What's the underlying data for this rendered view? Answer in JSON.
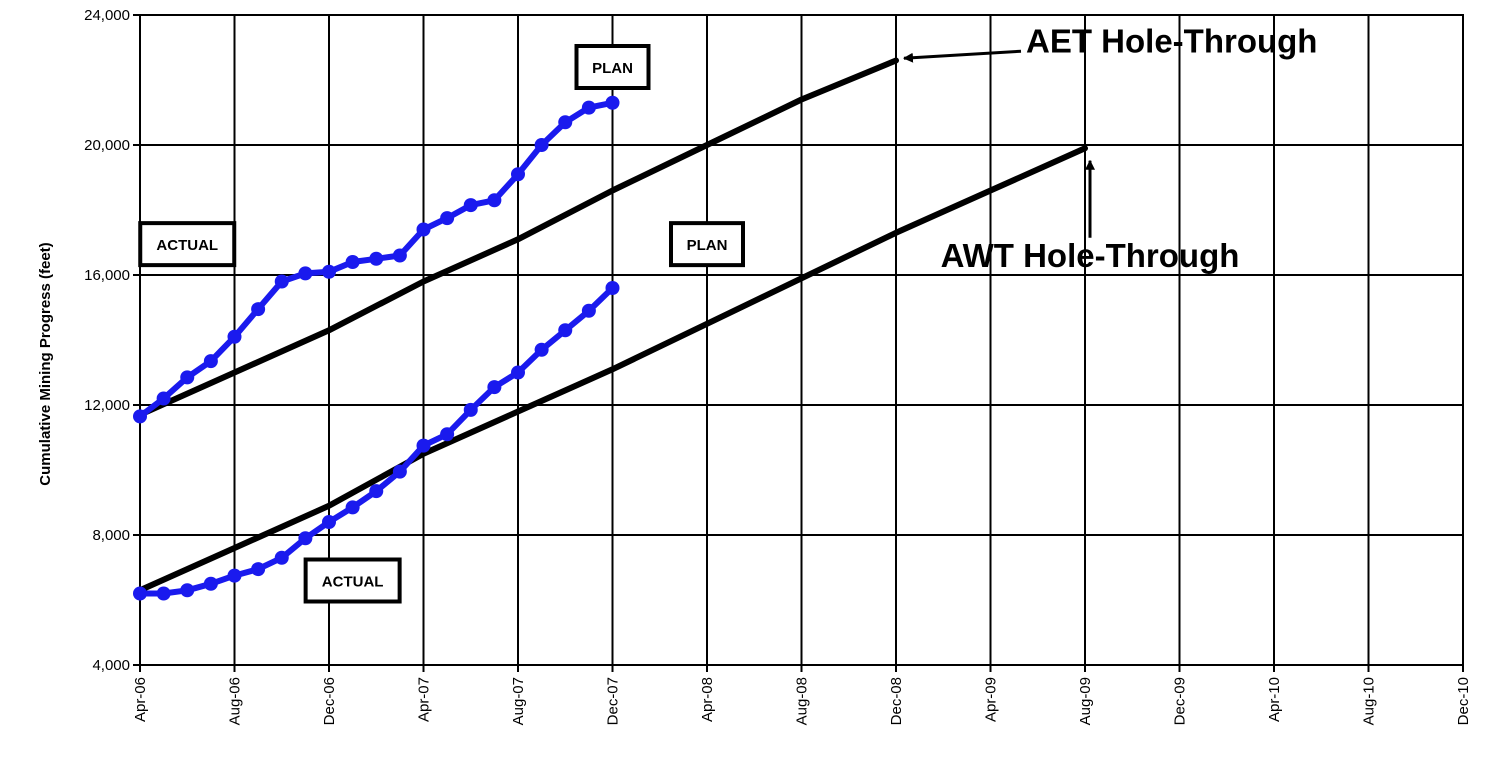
{
  "chart_data": {
    "type": "line",
    "ylabel": "Cumulative Mining Progress  (feet)",
    "ylim": [
      4000,
      24000
    ],
    "yticks": [
      4000,
      8000,
      12000,
      16000,
      20000,
      24000
    ],
    "ytick_labels": [
      "4,000",
      "8,000",
      "12,000",
      "16,000",
      "20,000",
      "24,000"
    ],
    "xlim": [
      "2006-04",
      "2010-12"
    ],
    "xticks": [
      "2006-04",
      "2006-08",
      "2006-12",
      "2007-04",
      "2007-08",
      "2007-12",
      "2008-04",
      "2008-08",
      "2008-12",
      "2009-04",
      "2009-08",
      "2009-12",
      "2010-04",
      "2010-08",
      "2010-12"
    ],
    "xtick_labels": [
      "Apr-06",
      "Aug-06",
      "Dec-06",
      "Apr-07",
      "Aug-07",
      "Dec-07",
      "Apr-08",
      "Aug-08",
      "Dec-08",
      "Apr-09",
      "Aug-09",
      "Dec-09",
      "Apr-10",
      "Aug-10",
      "Dec-10"
    ],
    "grid": true,
    "series": [
      {
        "color": "#000000",
        "markers": false,
        "x": [
          "2006-04",
          "2006-08",
          "2006-12",
          "2007-04",
          "2007-08",
          "2007-12",
          "2008-04",
          "2008-08",
          "2008-12"
        ],
        "y": [
          11700,
          13000,
          14300,
          15800,
          17100,
          18600,
          20000,
          21400,
          22600
        ]
      },
      {
        "color": "#000000",
        "markers": false,
        "x": [
          "2006-04",
          "2006-08",
          "2006-12",
          "2007-04",
          "2007-08",
          "2007-12",
          "2008-04",
          "2008-08",
          "2008-12",
          "2009-04",
          "2009-08"
        ],
        "y": [
          6300,
          7600,
          8900,
          10500,
          11800,
          13100,
          14500,
          15900,
          17300,
          18600,
          19900
        ]
      },
      {
        "color": "#1a1aee",
        "markers": true,
        "x": [
          "2006-04",
          "2006-05",
          "2006-06",
          "2006-07",
          "2006-08",
          "2006-09",
          "2006-10",
          "2006-11",
          "2006-12",
          "2007-01",
          "2007-02",
          "2007-03",
          "2007-04",
          "2007-05",
          "2007-06",
          "2007-07",
          "2007-08",
          "2007-09",
          "2007-10",
          "2007-11",
          "2007-12"
        ],
        "y": [
          11650,
          12200,
          12850,
          13350,
          14100,
          14950,
          15800,
          16050,
          16100,
          16400,
          16500,
          16600,
          17400,
          17750,
          18150,
          18300,
          19100,
          20000,
          20700,
          21150,
          21300
        ]
      },
      {
        "color": "#1a1aee",
        "markers": true,
        "x": [
          "2006-04",
          "2006-05",
          "2006-06",
          "2006-07",
          "2006-08",
          "2006-09",
          "2006-10",
          "2006-11",
          "2006-12",
          "2007-01",
          "2007-02",
          "2007-03",
          "2007-04",
          "2007-05",
          "2007-06",
          "2007-07",
          "2007-08",
          "2007-09",
          "2007-10",
          "2007-11",
          "2007-12"
        ],
        "y": [
          6200,
          6200,
          6300,
          6500,
          6750,
          6950,
          7300,
          7900,
          8400,
          8850,
          9350,
          9950,
          10750,
          11100,
          11850,
          12550,
          13000,
          13700,
          14300,
          14900,
          15600
        ]
      }
    ],
    "annotations": [
      {
        "text": "ACTUAL",
        "style": "box",
        "x": "2006-06",
        "y": 16950
      },
      {
        "text": "ACTUAL",
        "style": "box",
        "x": "2007-01",
        "y": 6600
      },
      {
        "text": "PLAN",
        "style": "box",
        "x": "2007-12",
        "y": 22400
      },
      {
        "text": "PLAN",
        "style": "box",
        "x": "2008-04",
        "y": 16950
      },
      {
        "text": "AET Hole-Through",
        "style": "big",
        "arrow_to": {
          "x": "2008-12",
          "y": 22700
        }
      },
      {
        "text": "AWT Hole-Through",
        "style": "big",
        "arrow_to": {
          "x": "2009-08",
          "y": 19700
        }
      }
    ]
  }
}
